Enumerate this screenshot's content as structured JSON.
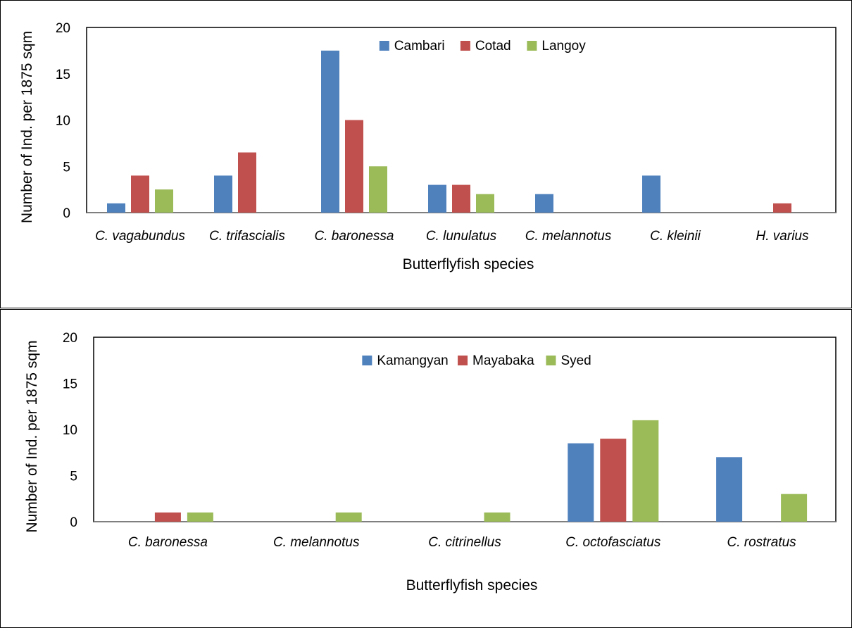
{
  "chart_data": [
    {
      "type": "bar",
      "xlabel": "Butterflyfish species",
      "ylabel": "Number of Ind. per 1875 sqm",
      "ylim": [
        0,
        20
      ],
      "yticks": [
        "0",
        "5",
        "10",
        "15",
        "20"
      ],
      "legend_position": "top-center",
      "categories": [
        "C. vagabundus",
        "C. trifascialis",
        "C. baronessa",
        "C. lunulatus",
        "C. melannotus",
        "C. kleinii",
        "H. varius"
      ],
      "series": [
        {
          "name": "Cambari",
          "color": "#4F81BD",
          "values": [
            1,
            4,
            17.5,
            3,
            2,
            4,
            0
          ]
        },
        {
          "name": "Cotad",
          "color": "#C0504D",
          "values": [
            4,
            6.5,
            10,
            3,
            0,
            0,
            1
          ]
        },
        {
          "name": "Langoy",
          "color": "#9BBB59",
          "values": [
            2.5,
            0,
            5,
            2,
            0,
            0,
            0
          ]
        }
      ]
    },
    {
      "type": "bar",
      "xlabel": "Butterflyfish species",
      "ylabel": "Number of Ind. per 1875 sqm",
      "ylim": [
        0,
        20
      ],
      "yticks": [
        "0",
        "5",
        "10",
        "15",
        "20"
      ],
      "legend_position": "top-center",
      "categories": [
        "C. baronessa",
        "C. melannotus",
        "C. citrinellus",
        "C. octofasciatus",
        "C. rostratus"
      ],
      "series": [
        {
          "name": "Kamangyan",
          "color": "#4F81BD",
          "values": [
            0,
            0,
            0,
            8.5,
            7
          ]
        },
        {
          "name": "Mayabaka",
          "color": "#C0504D",
          "values": [
            1,
            0,
            0,
            9,
            0
          ]
        },
        {
          "name": "Syed",
          "color": "#9BBB59",
          "values": [
            1,
            1,
            1,
            11,
            3
          ]
        }
      ]
    }
  ]
}
